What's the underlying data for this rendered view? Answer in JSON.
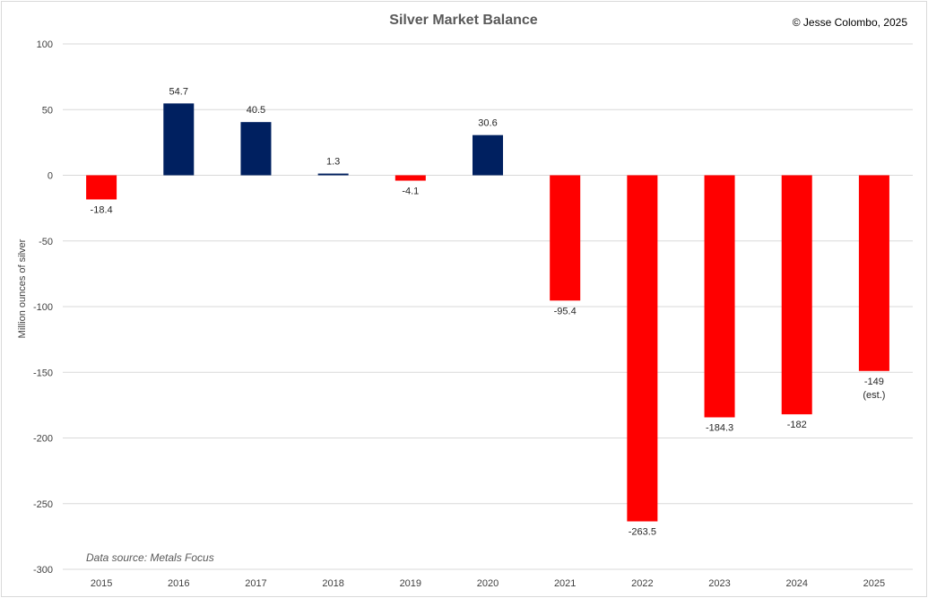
{
  "chart_data": {
    "type": "bar",
    "title": "Silver Market Balance",
    "copyright": "© Jesse Colombo, 2025",
    "source_note": "Data source: Metals Focus",
    "xlabel": "",
    "ylabel": "Million  ounces of silver",
    "ylim": [
      -300,
      100
    ],
    "yticks": [
      100,
      50,
      0,
      -50,
      -100,
      -150,
      -200,
      -250,
      -300
    ],
    "grid": true,
    "legend": "none",
    "categories": [
      "2015",
      "2016",
      "2017",
      "2018",
      "2019",
      "2020",
      "2021",
      "2022",
      "2023",
      "2024",
      "2025"
    ],
    "values": [
      -18.4,
      54.7,
      40.5,
      1.3,
      -4.1,
      30.6,
      -95.4,
      -263.5,
      -184.3,
      -182,
      -149
    ],
    "data_labels": [
      "-18.4",
      "54.7",
      "40.5",
      "1.3",
      "-4.1",
      "30.6",
      "-95.4",
      "-263.5",
      "-184.3",
      "-182",
      "-149"
    ],
    "data_label_notes": [
      "",
      "",
      "",
      "",
      "",
      "",
      "",
      "",
      "",
      "",
      "(est.)"
    ],
    "colors": {
      "positive": "#002060",
      "negative": "#ff0000",
      "grid": "#d9d9d9"
    }
  }
}
